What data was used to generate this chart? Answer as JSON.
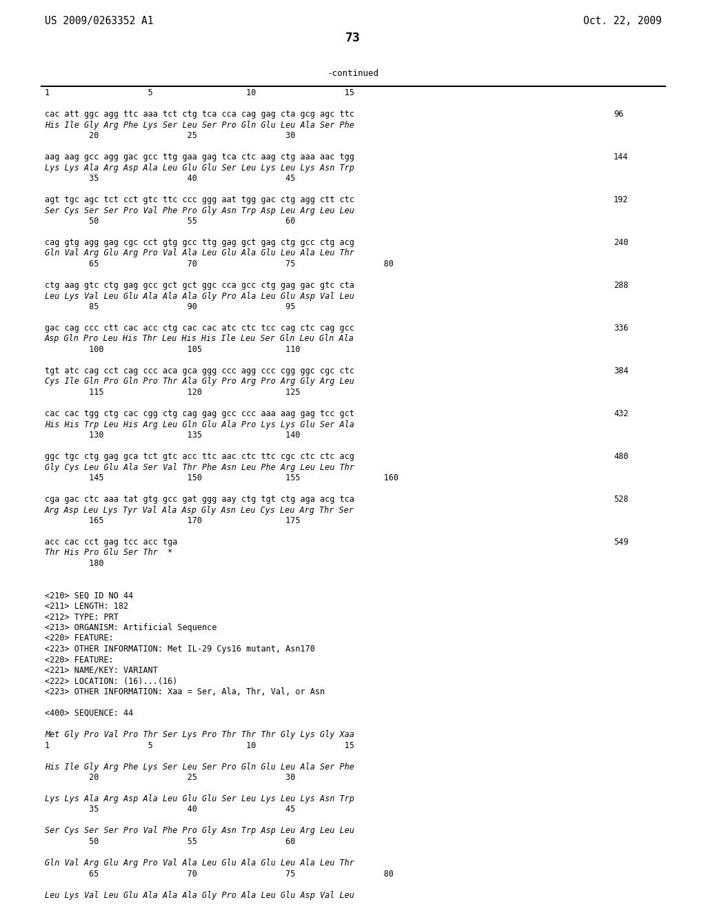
{
  "header_left": "US 2009/0263352 A1",
  "header_right": "Oct. 22, 2009",
  "page_number": "73",
  "continued_label": "-continued",
  "background_color": "#ffffff",
  "text_color": "#000000",
  "content": [
    {
      "text": "1                    5                   10                  15",
      "italic": false,
      "num": null
    },
    {
      "text": "",
      "italic": false,
      "num": null
    },
    {
      "text": "cac att ggc agg ttc aaa tct ctg tca cca cag gag cta gcg agc ttc",
      "italic": false,
      "num": "96"
    },
    {
      "text": "His Ile Gly Arg Phe Lys Ser Leu Ser Pro Gln Glu Leu Ala Ser Phe",
      "italic": true,
      "num": null
    },
    {
      "text": "         20                  25                  30",
      "italic": false,
      "num": null
    },
    {
      "text": "",
      "italic": false,
      "num": null
    },
    {
      "text": "aag aag gcc agg gac gcc ttg gaa gag tca ctc aag ctg aaa aac tgg",
      "italic": false,
      "num": "144"
    },
    {
      "text": "Lys Lys Ala Arg Asp Ala Leu Glu Glu Ser Leu Lys Leu Lys Asn Trp",
      "italic": true,
      "num": null
    },
    {
      "text": "         35                  40                  45",
      "italic": false,
      "num": null
    },
    {
      "text": "",
      "italic": false,
      "num": null
    },
    {
      "text": "agt tgc agc tct cct gtc ttc ccc ggg aat tgg gac ctg agg ctt ctc",
      "italic": false,
      "num": "192"
    },
    {
      "text": "Ser Cys Ser Ser Pro Val Phe Pro Gly Asn Trp Asp Leu Arg Leu Leu",
      "italic": true,
      "num": null
    },
    {
      "text": "         50                  55                  60",
      "italic": false,
      "num": null
    },
    {
      "text": "",
      "italic": false,
      "num": null
    },
    {
      "text": "cag gtg agg gag cgc cct gtg gcc ttg gag gct gag ctg gcc ctg acg",
      "italic": false,
      "num": "240"
    },
    {
      "text": "Gln Val Arg Glu Arg Pro Val Ala Leu Glu Ala Glu Leu Ala Leu Thr",
      "italic": true,
      "num": null
    },
    {
      "text": "         65                  70                  75                  80",
      "italic": false,
      "num": null
    },
    {
      "text": "",
      "italic": false,
      "num": null
    },
    {
      "text": "ctg aag gtc ctg gag gcc gct gct ggc cca gcc ctg gag gac gtc cta",
      "italic": false,
      "num": "288"
    },
    {
      "text": "Leu Lys Val Leu Glu Ala Ala Ala Gly Pro Ala Leu Glu Asp Val Leu",
      "italic": true,
      "num": null
    },
    {
      "text": "         85                  90                  95",
      "italic": false,
      "num": null
    },
    {
      "text": "",
      "italic": false,
      "num": null
    },
    {
      "text": "gac cag ccc ctt cac acc ctg cac cac atc ctc tcc cag ctc cag gcc",
      "italic": false,
      "num": "336"
    },
    {
      "text": "Asp Gln Pro Leu His Thr Leu His His Ile Leu Ser Gln Leu Gln Ala",
      "italic": true,
      "num": null
    },
    {
      "text": "         100                 105                 110",
      "italic": false,
      "num": null
    },
    {
      "text": "",
      "italic": false,
      "num": null
    },
    {
      "text": "tgt atc cag cct cag ccc aca gca ggg ccc agg ccc cgg ggc cgc ctc",
      "italic": false,
      "num": "384"
    },
    {
      "text": "Cys Ile Gln Pro Gln Pro Thr Ala Gly Pro Arg Pro Arg Gly Arg Leu",
      "italic": true,
      "num": null
    },
    {
      "text": "         115                 120                 125",
      "italic": false,
      "num": null
    },
    {
      "text": "",
      "italic": false,
      "num": null
    },
    {
      "text": "cac cac tgg ctg cac cgg ctg cag gag gcc ccc aaa aag gag tcc gct",
      "italic": false,
      "num": "432"
    },
    {
      "text": "His His Trp Leu His Arg Leu Gln Glu Ala Pro Lys Lys Glu Ser Ala",
      "italic": true,
      "num": null
    },
    {
      "text": "         130                 135                 140",
      "italic": false,
      "num": null
    },
    {
      "text": "",
      "italic": false,
      "num": null
    },
    {
      "text": "ggc tgc ctg gag gca tct gtc acc ttc aac ctc ttc cgc ctc ctc acg",
      "italic": false,
      "num": "480"
    },
    {
      "text": "Gly Cys Leu Glu Ala Ser Val Thr Phe Asn Leu Phe Arg Leu Leu Thr",
      "italic": true,
      "num": null
    },
    {
      "text": "         145                 150                 155                 160",
      "italic": false,
      "num": null
    },
    {
      "text": "",
      "italic": false,
      "num": null
    },
    {
      "text": "cga gac ctc aaa tat gtg gcc gat ggg aay ctg tgt ctg aga acg tca",
      "italic": false,
      "num": "528"
    },
    {
      "text": "Arg Asp Leu Lys Tyr Val Ala Asp Gly Asn Leu Cys Leu Arg Thr Ser",
      "italic": true,
      "num": null
    },
    {
      "text": "         165                 170                 175",
      "italic": false,
      "num": null
    },
    {
      "text": "",
      "italic": false,
      "num": null
    },
    {
      "text": "acc cac cct gag tcc acc tga",
      "italic": false,
      "num": "549"
    },
    {
      "text": "Thr His Pro Glu Ser Thr  *",
      "italic": true,
      "num": null
    },
    {
      "text": "         180",
      "italic": false,
      "num": null
    },
    {
      "text": "",
      "italic": false,
      "num": null
    },
    {
      "text": "",
      "italic": false,
      "num": null
    },
    {
      "text": "<210> SEQ ID NO 44",
      "italic": false,
      "num": null
    },
    {
      "text": "<211> LENGTH: 182",
      "italic": false,
      "num": null
    },
    {
      "text": "<212> TYPE: PRT",
      "italic": false,
      "num": null
    },
    {
      "text": "<213> ORGANISM: Artificial Sequence",
      "italic": false,
      "num": null
    },
    {
      "text": "<220> FEATURE:",
      "italic": false,
      "num": null
    },
    {
      "text": "<223> OTHER INFORMATION: Met IL-29 Cys16 mutant, Asn170",
      "italic": false,
      "num": null
    },
    {
      "text": "<220> FEATURE:",
      "italic": false,
      "num": null
    },
    {
      "text": "<221> NAME/KEY: VARIANT",
      "italic": false,
      "num": null
    },
    {
      "text": "<222> LOCATION: (16)...(16)",
      "italic": false,
      "num": null
    },
    {
      "text": "<223> OTHER INFORMATION: Xaa = Ser, Ala, Thr, Val, or Asn",
      "italic": false,
      "num": null
    },
    {
      "text": "",
      "italic": false,
      "num": null
    },
    {
      "text": "<400> SEQUENCE: 44",
      "italic": false,
      "num": null
    },
    {
      "text": "",
      "italic": false,
      "num": null
    },
    {
      "text": "Met Gly Pro Val Pro Thr Ser Lys Pro Thr Thr Thr Gly Lys Gly Xaa",
      "italic": true,
      "num": null
    },
    {
      "text": "1                    5                   10                  15",
      "italic": false,
      "num": null
    },
    {
      "text": "",
      "italic": false,
      "num": null
    },
    {
      "text": "His Ile Gly Arg Phe Lys Ser Leu Ser Pro Gln Glu Leu Ala Ser Phe",
      "italic": true,
      "num": null
    },
    {
      "text": "         20                  25                  30",
      "italic": false,
      "num": null
    },
    {
      "text": "",
      "italic": false,
      "num": null
    },
    {
      "text": "Lys Lys Ala Arg Asp Ala Leu Glu Glu Ser Leu Lys Leu Lys Asn Trp",
      "italic": true,
      "num": null
    },
    {
      "text": "         35                  40                  45",
      "italic": false,
      "num": null
    },
    {
      "text": "",
      "italic": false,
      "num": null
    },
    {
      "text": "Ser Cys Ser Ser Pro Val Phe Pro Gly Asn Trp Asp Leu Arg Leu Leu",
      "italic": true,
      "num": null
    },
    {
      "text": "         50                  55                  60",
      "italic": false,
      "num": null
    },
    {
      "text": "",
      "italic": false,
      "num": null
    },
    {
      "text": "Gln Val Arg Glu Arg Pro Val Ala Leu Glu Ala Glu Leu Ala Leu Thr",
      "italic": true,
      "num": null
    },
    {
      "text": "         65                  70                  75                  80",
      "italic": false,
      "num": null
    },
    {
      "text": "",
      "italic": false,
      "num": null
    },
    {
      "text": "Leu Lys Val Leu Glu Ala Ala Ala Gly Pro Ala Leu Glu Asp Val Leu",
      "italic": true,
      "num": null
    }
  ]
}
